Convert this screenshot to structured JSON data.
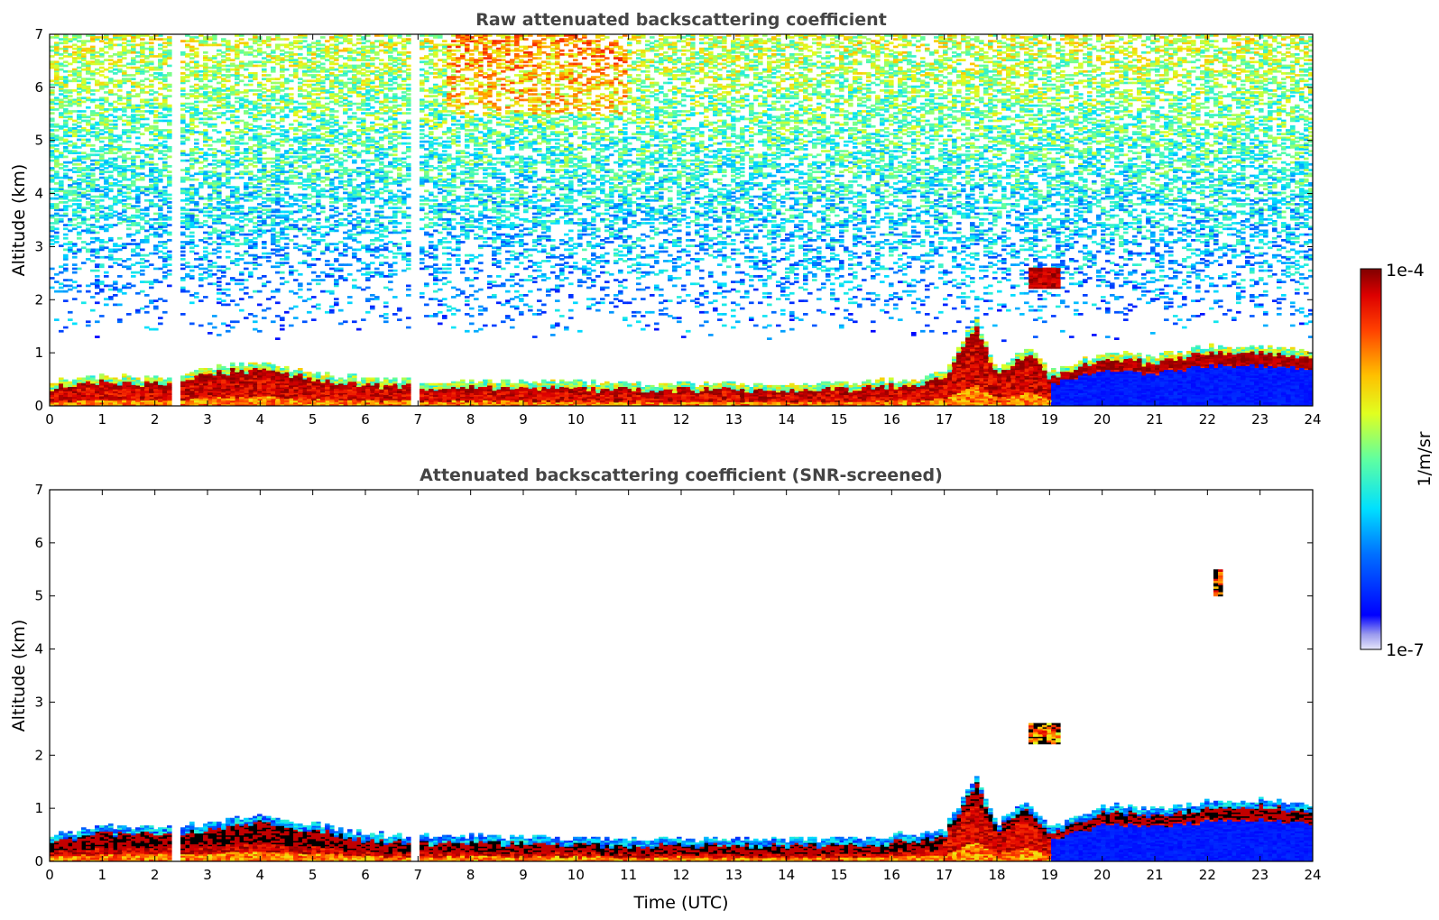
{
  "chart_data": [
    {
      "type": "heatmap",
      "title": "Raw attenuated backscattering coefficient",
      "xlabel": "",
      "ylabel": "Altitude (km)",
      "xlim": [
        0,
        24
      ],
      "ylim": [
        0,
        7
      ],
      "x_ticks": [
        "0",
        "1",
        "2",
        "3",
        "4",
        "5",
        "6",
        "7",
        "8",
        "9",
        "10",
        "11",
        "12",
        "13",
        "14",
        "15",
        "16",
        "17",
        "18",
        "19",
        "20",
        "21",
        "22",
        "23",
        "24"
      ],
      "y_ticks": [
        "0",
        "1",
        "2",
        "3",
        "4",
        "5",
        "6",
        "7"
      ],
      "grid": false,
      "colormap": "jet",
      "color_scale": "log",
      "color_range": [
        "1e-7",
        "1e-4"
      ],
      "features": {
        "boundary_layer_top_km": [
          [
            0,
            0.35
          ],
          [
            1,
            0.45
          ],
          [
            2,
            0.4
          ],
          [
            3,
            0.6
          ],
          [
            4,
            0.7
          ],
          [
            5,
            0.5
          ],
          [
            6,
            0.4
          ],
          [
            7,
            0.35
          ],
          [
            9,
            0.35
          ],
          [
            11,
            0.3
          ],
          [
            13,
            0.3
          ],
          [
            15,
            0.3
          ],
          [
            16.5,
            0.4
          ],
          [
            17,
            0.5
          ],
          [
            17.6,
            1.5
          ],
          [
            18,
            0.6
          ],
          [
            18.6,
            1.0
          ],
          [
            19,
            0.5
          ],
          [
            20,
            0.9
          ],
          [
            21,
            0.8
          ],
          [
            22,
            1.0
          ],
          [
            23,
            1.0
          ],
          [
            24,
            0.9
          ]
        ],
        "cloud_patches": [
          {
            "x": [
              18.6,
              19.2
            ],
            "y_km": [
              2.2,
              2.6
            ]
          }
        ],
        "data_gaps_hours": [
          [
            2.3,
            2.45
          ],
          [
            6.85,
            7.05
          ]
        ]
      }
    },
    {
      "type": "heatmap",
      "title": "Attenuated backscattering coefficient (SNR-screened)",
      "xlabel": "Time (UTC)",
      "ylabel": "Altitude (km)",
      "xlim": [
        0,
        24
      ],
      "ylim": [
        0,
        7
      ],
      "x_ticks": [
        "0",
        "1",
        "2",
        "3",
        "4",
        "5",
        "6",
        "7",
        "8",
        "9",
        "10",
        "11",
        "12",
        "13",
        "14",
        "15",
        "16",
        "17",
        "18",
        "19",
        "20",
        "21",
        "22",
        "23",
        "24"
      ],
      "y_ticks": [
        "0",
        "1",
        "2",
        "3",
        "4",
        "5",
        "6",
        "7"
      ],
      "grid": false,
      "colormap": "jet",
      "color_scale": "log",
      "color_range": [
        "1e-7",
        "1e-4"
      ],
      "features": {
        "boundary_layer_top_km": [
          [
            0,
            0.35
          ],
          [
            1,
            0.55
          ],
          [
            2,
            0.5
          ],
          [
            3,
            0.6
          ],
          [
            4,
            0.75
          ],
          [
            5,
            0.6
          ],
          [
            6,
            0.4
          ],
          [
            7,
            0.35
          ],
          [
            9,
            0.35
          ],
          [
            11,
            0.3
          ],
          [
            13,
            0.3
          ],
          [
            15,
            0.3
          ],
          [
            16.5,
            0.4
          ],
          [
            17,
            0.5
          ],
          [
            17.6,
            1.5
          ],
          [
            18,
            0.6
          ],
          [
            18.6,
            1.0
          ],
          [
            19,
            0.5
          ],
          [
            20,
            0.95
          ],
          [
            21,
            0.85
          ],
          [
            22,
            1.0
          ],
          [
            23,
            1.05
          ],
          [
            24,
            0.95
          ]
        ],
        "cloud_patches": [
          {
            "x": [
              18.6,
              19.2
            ],
            "y_km": [
              2.2,
              2.6
            ]
          },
          {
            "x": [
              22.1,
              22.25
            ],
            "y_km": [
              5.0,
              5.5
            ]
          }
        ],
        "data_gaps_hours": [
          [
            2.3,
            2.45
          ],
          [
            6.85,
            7.05
          ]
        ]
      }
    }
  ],
  "colorbar": {
    "top_label": "1e-4",
    "bottom_label": "1e-7",
    "unit": "1/m/sr"
  }
}
